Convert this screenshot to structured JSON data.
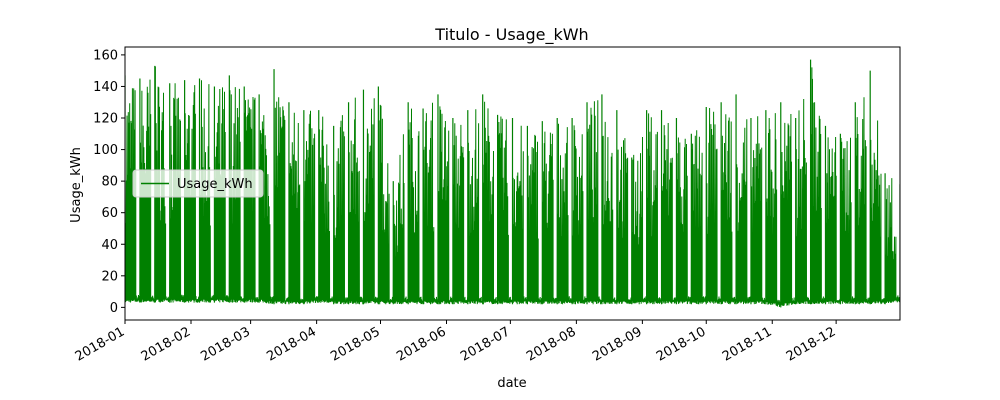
{
  "chart_data": {
    "type": "line",
    "title": "Titulo - Usage_kWh",
    "xlabel": "date",
    "ylabel": "Usage_kWh",
    "xlim": [
      "2018-01-01",
      "2018-12-31"
    ],
    "ylim": [
      -8,
      165
    ],
    "yticks": [
      0,
      20,
      40,
      60,
      80,
      100,
      120,
      140,
      160
    ],
    "xticks": [
      "2018-01",
      "2018-02",
      "2018-03",
      "2018-04",
      "2018-05",
      "2018-06",
      "2018-07",
      "2018-08",
      "2018-09",
      "2018-10",
      "2018-11",
      "2018-12"
    ],
    "grid": false,
    "legend_position": "center-left",
    "series": [
      {
        "name": "Usage_kWh",
        "color": "#008000",
        "x": [
          "2018-01-01",
          "2018-01-08",
          "2018-01-15",
          "2018-01-22",
          "2018-01-29",
          "2018-02-05",
          "2018-02-12",
          "2018-02-19",
          "2018-02-26",
          "2018-03-05",
          "2018-03-12",
          "2018-03-19",
          "2018-03-26",
          "2018-04-02",
          "2018-04-09",
          "2018-04-16",
          "2018-04-23",
          "2018-04-30",
          "2018-05-07",
          "2018-05-14",
          "2018-05-21",
          "2018-05-28",
          "2018-06-04",
          "2018-06-11",
          "2018-06-18",
          "2018-06-25",
          "2018-07-02",
          "2018-07-09",
          "2018-07-16",
          "2018-07-23",
          "2018-07-30",
          "2018-08-06",
          "2018-08-13",
          "2018-08-20",
          "2018-08-27",
          "2018-09-03",
          "2018-09-10",
          "2018-09-17",
          "2018-09-24",
          "2018-10-01",
          "2018-10-08",
          "2018-10-15",
          "2018-10-22",
          "2018-10-29",
          "2018-11-05",
          "2018-11-12",
          "2018-11-19",
          "2018-11-26",
          "2018-12-03",
          "2018-12-10",
          "2018-12-17",
          "2018-12-24",
          "2018-12-31"
        ],
        "max": [
          147,
          145,
          153,
          142,
          144,
          145,
          140,
          147,
          140,
          135,
          151,
          130,
          125,
          125,
          115,
          130,
          138,
          140,
          80,
          130,
          126,
          135,
          120,
          125,
          135,
          122,
          120,
          115,
          118,
          120,
          120,
          130,
          135,
          125,
          95,
          125,
          125,
          120,
          110,
          127,
          130,
          135,
          120,
          125,
          130,
          120,
          157,
          115,
          110,
          130,
          150,
          85,
          78
        ],
        "min": [
          3,
          3,
          3,
          3,
          3,
          3,
          3,
          3,
          3,
          3,
          2,
          2,
          2,
          3,
          2,
          2,
          2,
          2,
          2,
          2,
          2,
          2,
          2,
          2,
          2,
          2,
          2,
          2,
          2,
          2,
          2,
          2,
          2,
          2,
          2,
          2,
          2,
          2,
          2,
          2,
          2,
          2,
          2,
          2,
          0,
          2,
          2,
          2,
          2,
          2,
          2,
          2,
          3
        ]
      }
    ]
  }
}
